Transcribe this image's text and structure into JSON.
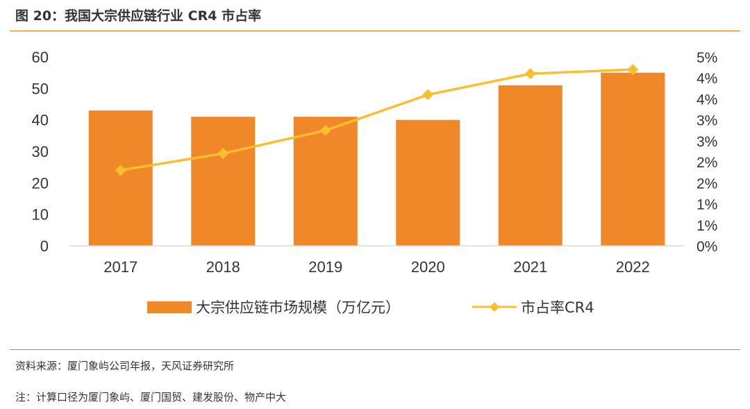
{
  "figure": {
    "title": "图 20：我国大宗供应链行业 CR4 市占率",
    "source": "资料来源：厦门象屿公司年报，天风证券研究所",
    "note": "注：计算口径为厦门象屿、厦门国贸、建发股份、物产中大"
  },
  "colors": {
    "bar": "#f0882a",
    "line": "#fbbf2e",
    "accent_rule": "#e8761f",
    "text": "#333333",
    "axis": "#d9d9d9"
  },
  "chart_data": {
    "type": "bar",
    "categories": [
      "2017",
      "2018",
      "2019",
      "2020",
      "2021",
      "2022"
    ],
    "series": [
      {
        "name": "大宗供应链市场规模（万亿元）",
        "kind": "bar",
        "axis": "left",
        "values": [
          43,
          41,
          41,
          40,
          51,
          55
        ]
      },
      {
        "name": "市占率CR4",
        "kind": "line",
        "axis": "right",
        "marker": "diamond",
        "values": [
          1.8,
          2.2,
          2.75,
          3.6,
          4.1,
          4.2
        ]
      }
    ],
    "y_left": {
      "min": 0,
      "max": 60,
      "ticks": [
        0,
        10,
        20,
        30,
        40,
        50,
        60
      ],
      "tick_labels": [
        "0",
        "10",
        "20",
        "30",
        "40",
        "50",
        "60"
      ]
    },
    "y_right": {
      "min": 0,
      "max": 4.5,
      "ticks": [
        0,
        0.5,
        1,
        1.5,
        2,
        2.5,
        3,
        3.5,
        4,
        4.5
      ],
      "tick_labels": [
        "0%",
        "1%",
        "1%",
        "2%",
        "2%",
        "3%",
        "3%",
        "4%",
        "4%",
        "5%"
      ]
    },
    "grid": false,
    "legend": "bottom-center"
  }
}
